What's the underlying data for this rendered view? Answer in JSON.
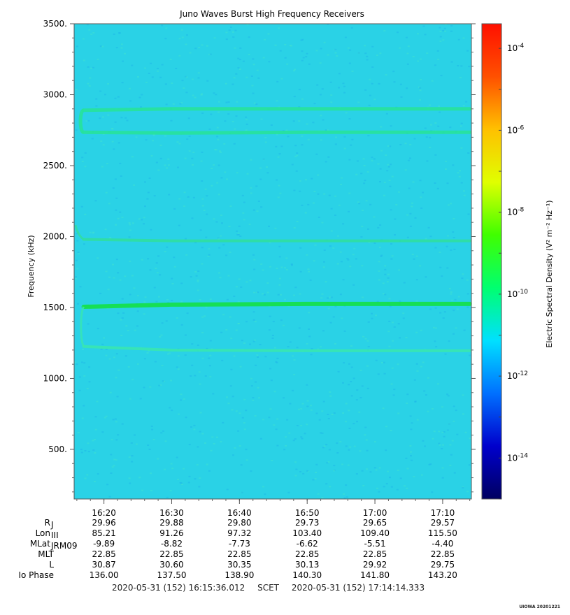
{
  "chart_data": {
    "type": "heatmap",
    "title": "Juno Waves Burst High Frequency Receivers",
    "ylabel": "Frequency (kHz)",
    "ylim": [
      150,
      3500
    ],
    "y_ticks": [
      {
        "value": 500,
        "label": "500."
      },
      {
        "value": 1000,
        "label": "1000."
      },
      {
        "value": 1500,
        "label": "1500."
      },
      {
        "value": 2000,
        "label": "2000."
      },
      {
        "value": 2500,
        "label": "2500."
      },
      {
        "value": 3000,
        "label": "3000."
      },
      {
        "value": 3500,
        "label": "3500."
      }
    ],
    "x_range_minutes": [
      975.6,
      1034.24
    ],
    "x_ticks": [
      {
        "minute": 980,
        "label": "16:20"
      },
      {
        "minute": 990,
        "label": "16:30"
      },
      {
        "minute": 1000,
        "label": "16:40"
      },
      {
        "minute": 1010,
        "label": "16:50"
      },
      {
        "minute": 1020,
        "label": "17:00"
      },
      {
        "minute": 1030,
        "label": "17:10"
      }
    ],
    "background_color": "#2ad2e6",
    "emission_bands": [
      {
        "name": "",
        "freqs_khz": [
          2890,
          2900,
          2900,
          2900
        ],
        "minutes": [
          977,
          990,
          1010,
          1034
        ],
        "color": "#27e29a",
        "width": 5
      },
      {
        "name": "",
        "freqs_khz": [
          2735,
          2730,
          2735,
          2735
        ],
        "minutes": [
          977,
          990,
          1010,
          1034
        ],
        "color": "#27e29a",
        "width": 5
      },
      {
        "name": "",
        "freqs_khz": [
          1980,
          1970,
          1970,
          1970
        ],
        "minutes": [
          977,
          990,
          1010,
          1034
        ],
        "color": "#30dea0",
        "width": 4
      },
      {
        "name": "",
        "freqs_khz": [
          1505,
          1520,
          1525,
          1525
        ],
        "minutes": [
          977,
          990,
          1010,
          1034
        ],
        "color": "#14e045",
        "width": 6
      },
      {
        "name": "",
        "freqs_khz": [
          1225,
          1200,
          1195,
          1195
        ],
        "minutes": [
          977,
          990,
          1010,
          1034
        ],
        "color": "#38e6b0",
        "width": 4
      }
    ],
    "colorbar": {
      "label": "Electric Spectral Density (V² m⁻² Hz⁻¹)",
      "range_log10": [
        -15,
        -3.4
      ],
      "ticks": [
        {
          "exp": -4,
          "base": "10",
          "power": "-4"
        },
        {
          "exp": -6,
          "base": "10",
          "power": "-6"
        },
        {
          "exp": -8,
          "base": "10",
          "power": "-8"
        },
        {
          "exp": -10,
          "base": "10",
          "power": "-10"
        },
        {
          "exp": -12,
          "base": "10",
          "power": "-12"
        },
        {
          "exp": -14,
          "base": "10",
          "power": "-14"
        }
      ],
      "colors": [
        "#000060",
        "#0000cc",
        "#0070ff",
        "#00e0ff",
        "#00ff70",
        "#40ff00",
        "#e0ff00",
        "#ffc000",
        "#ff5000",
        "#ff1000"
      ]
    },
    "ephemeris": [
      {
        "label": "R",
        "sub": "J",
        "values": [
          "29.96",
          "29.88",
          "29.80",
          "29.73",
          "29.65",
          "29.57"
        ]
      },
      {
        "label": "Lon",
        "sub": "III",
        "values": [
          "85.21",
          "91.26",
          "97.32",
          "103.40",
          "109.40",
          "115.50"
        ]
      },
      {
        "label": "MLat",
        "sub": "JRM09",
        "values": [
          "-9.89",
          "-8.82",
          "-7.73",
          "-6.62",
          "-5.51",
          "-4.40"
        ]
      },
      {
        "label": "MLT",
        "sub": "",
        "values": [
          "22.85",
          "22.85",
          "22.85",
          "22.85",
          "22.85",
          "22.85"
        ]
      },
      {
        "label": "L",
        "sub": "",
        "values": [
          "30.87",
          "30.60",
          "30.35",
          "30.13",
          "29.92",
          "29.75"
        ]
      },
      {
        "label": "Io Phase",
        "sub": "",
        "values": [
          "136.00",
          "137.50",
          "138.90",
          "140.30",
          "141.80",
          "143.20"
        ]
      }
    ]
  },
  "footer": {
    "start": "2020-05-31 (152) 16:15:36.012",
    "scet": "SCET",
    "end": "2020-05-31 (152) 17:14:14.333"
  },
  "watermark": "UIOWA 20201221"
}
